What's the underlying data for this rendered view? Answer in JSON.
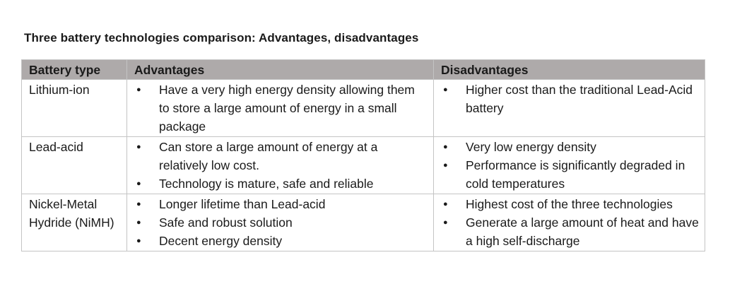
{
  "title": "Three battery technologies comparison: Advantages, disadvantages",
  "table": {
    "headers": {
      "type": "Battery type",
      "advantages": "Advantages",
      "disadvantages": "Disadvantages"
    },
    "rows": [
      {
        "type": "Lithium-ion",
        "advantages": [
          "Have a very high energy density allowing them to store a large amount of energy in a small package"
        ],
        "disadvantages": [
          "Higher cost than the traditional Lead-Acid battery"
        ]
      },
      {
        "type": "Lead-acid",
        "advantages": [
          "Can store a large amount of energy at a relatively low cost.",
          "Technology is mature, safe and reliable"
        ],
        "disadvantages": [
          "Very low energy density",
          "Performance is significantly degraded in cold temperatures"
        ]
      },
      {
        "type": "Nickel-Metal Hydride (NiMH)",
        "advantages": [
          "Longer lifetime than Lead-acid",
          "Safe and robust solution",
          "Decent energy density"
        ],
        "disadvantages": [
          "Highest cost of the three technologies",
          "Generate a large amount of heat and have a high self-discharge"
        ]
      }
    ]
  }
}
